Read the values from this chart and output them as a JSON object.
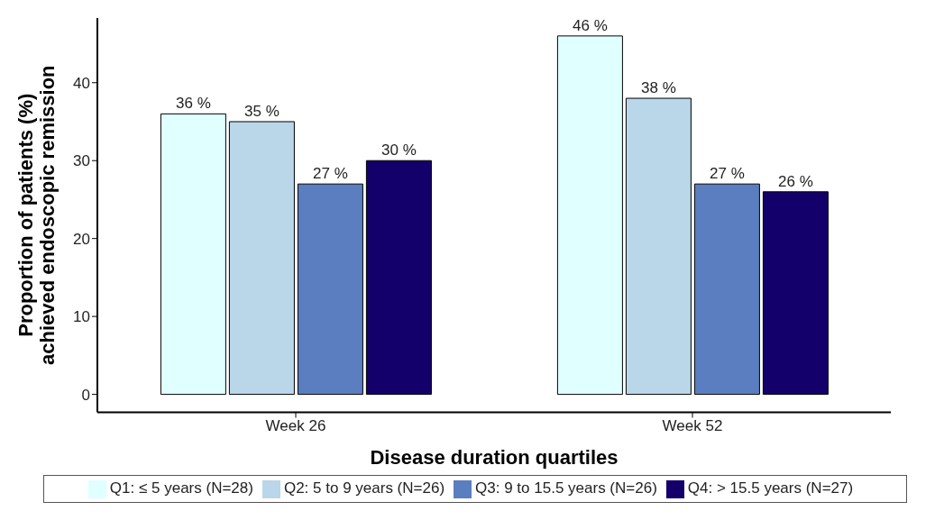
{
  "chart_data": {
    "type": "bar",
    "xlabel": "Disease duration quartiles",
    "ylabel": "Proportion of patients (%)\nachieved endoscopic remission",
    "categories": [
      "Week 26",
      "Week 52"
    ],
    "series": [
      {
        "name": "Q1: ≤ 5 years (N=28)",
        "color": "#e0ffff",
        "values": [
          36,
          46
        ],
        "value_labels": [
          "36 %",
          "46 %"
        ]
      },
      {
        "name": "Q2: 5 to 9 years (N=26)",
        "color": "#b9d7e8",
        "values": [
          35,
          38
        ],
        "value_labels": [
          "35 %",
          "38 %"
        ]
      },
      {
        "name": "Q3: 9 to 15.5 years (N=26)",
        "color": "#5a7ebf",
        "values": [
          27,
          27
        ],
        "value_labels": [
          "27 %",
          "27 %"
        ]
      },
      {
        "name": "Q4: > 15.5 years (N=27)",
        "color": "#13006b",
        "values": [
          30,
          26
        ],
        "value_labels": [
          "30 %",
          "26 %"
        ]
      }
    ],
    "ylim": [
      -2.3,
      48.3
    ],
    "yticks": [
      0,
      10,
      20,
      30,
      40
    ],
    "grid": false,
    "legend": "bottom"
  }
}
